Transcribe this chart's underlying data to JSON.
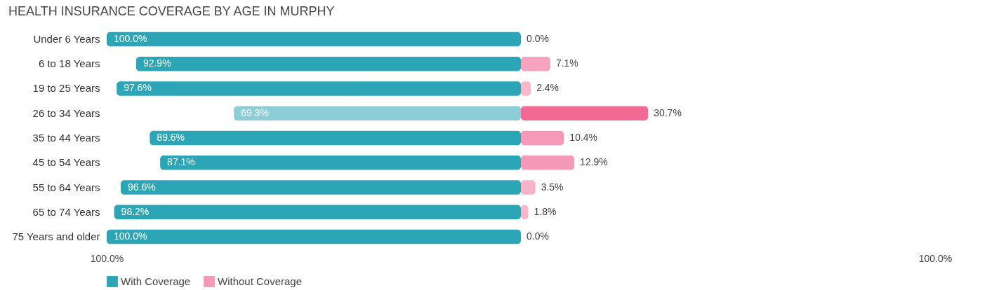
{
  "chart_data": {
    "type": "bar",
    "orientation": "horizontal",
    "title": "HEALTH INSURANCE COVERAGE BY AGE IN MURPHY",
    "categories": [
      "Under 6 Years",
      "6 to 18 Years",
      "19 to 25 Years",
      "26 to 34 Years",
      "35 to 44 Years",
      "45 to 54 Years",
      "55 to 64 Years",
      "65 to 74 Years",
      "75 Years and older"
    ],
    "series": [
      {
        "name": "With Coverage",
        "color": "#2ca6b6",
        "colors": [
          "#2ca6b6",
          "#2ca6b6",
          "#2ca6b6",
          "#8ccdd7",
          "#2ca6b6",
          "#2ca6b6",
          "#2ca6b6",
          "#2ca6b6",
          "#2ca6b6"
        ],
        "base": [
          -100,
          -92.9,
          -97.6,
          -69.3,
          -89.6,
          -87.1,
          -96.6,
          -98.2,
          -100
        ],
        "values": [
          100,
          92.9,
          97.6,
          69.3,
          89.6,
          87.1,
          96.6,
          98.2,
          100
        ],
        "value_labels": [
          "100.0%",
          "92.9%",
          "97.6%",
          "69.3%",
          "89.6%",
          "87.1%",
          "96.6%",
          "98.2%",
          "100.0%"
        ]
      },
      {
        "name": "Without Coverage",
        "color": "#f49ab8",
        "colors": [
          "#f7b7cb",
          "#f5a3bf",
          "#f7b7cb",
          "#f06a94",
          "#f49ab8",
          "#f49ab8",
          "#f7b4c9",
          "#f7b7cb",
          "#f7b7cb"
        ],
        "values": [
          0,
          7.1,
          2.4,
          30.7,
          10.4,
          12.9,
          3.5,
          1.8,
          0
        ],
        "value_labels": [
          "0.0%",
          "7.1%",
          "2.4%",
          "30.7%",
          "10.4%",
          "12.9%",
          "3.5%",
          "1.8%",
          "0.0%"
        ]
      }
    ],
    "xlim": [
      -100,
      100
    ],
    "xticks": [
      {
        "value": -100,
        "label": "100.0%"
      },
      {
        "value": 100,
        "label": "100.0%"
      }
    ],
    "grid": false,
    "legend": "bottom"
  }
}
